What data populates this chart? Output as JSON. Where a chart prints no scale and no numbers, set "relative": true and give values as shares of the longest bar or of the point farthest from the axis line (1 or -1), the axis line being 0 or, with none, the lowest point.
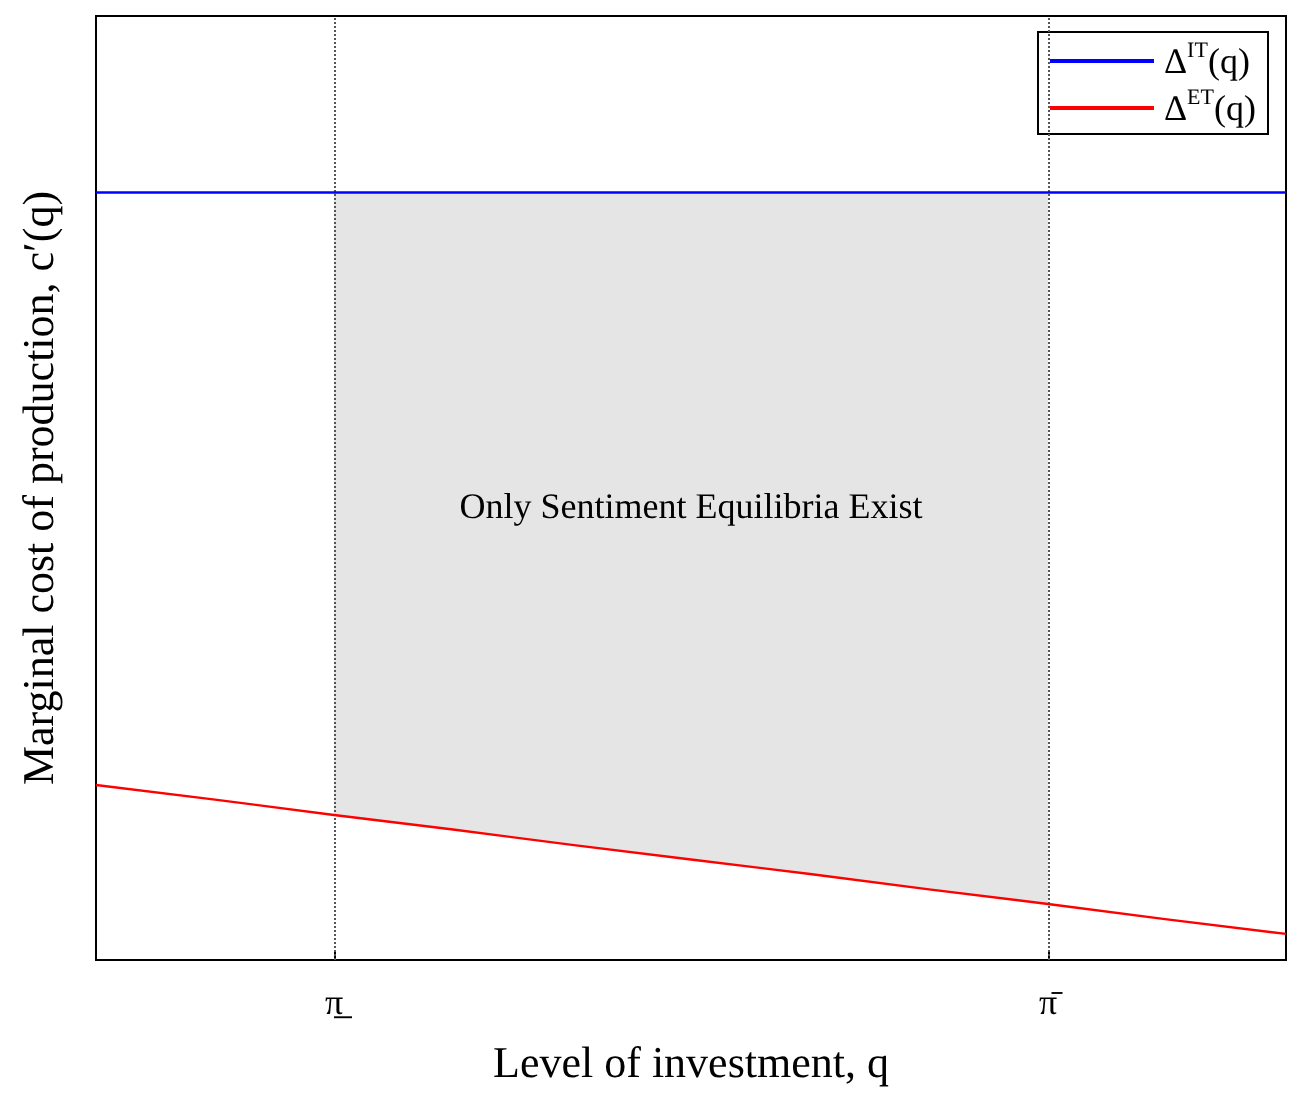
{
  "chart_data": {
    "type": "line",
    "relative": true,
    "xlabel": "Level of investment, q",
    "ylabel": "Marginal cost of production, c′(q)",
    "categories": [
      null,
      null,
      "π̲",
      null,
      null,
      null,
      null,
      null,
      "π̄",
      null,
      null
    ],
    "series": [
      {
        "name": "Δ$^{IT}$(q)",
        "color": "#0000ff",
        "values": [
          1,
          1,
          1,
          1,
          1,
          1,
          1,
          1,
          1,
          1,
          1
        ]
      },
      {
        "name": "Δ$^{ET}$(q)",
        "color": "#ff0000",
        "values": [
          0.228,
          0.209,
          0.189,
          0.17,
          0.15,
          0.131,
          0.112,
          0.092,
          0.073,
          0.053,
          0.034
        ]
      }
    ],
    "ref_lines": [
      {
        "axis": "x",
        "value": "π̲",
        "color": "#555555",
        "line_style": "dotted"
      },
      {
        "axis": "x",
        "value": "π̄",
        "color": "#555555",
        "line_style": "dotted"
      }
    ],
    "bands": [
      {
        "axis": "x",
        "from": "π̲",
        "to": "π̄",
        "label": "Only Sentiment Equilibria Exist",
        "color": "#e5e5e5"
      }
    ],
    "legend": "top right",
    "grid": false,
    "marker": "none",
    "line_style": "solid"
  }
}
